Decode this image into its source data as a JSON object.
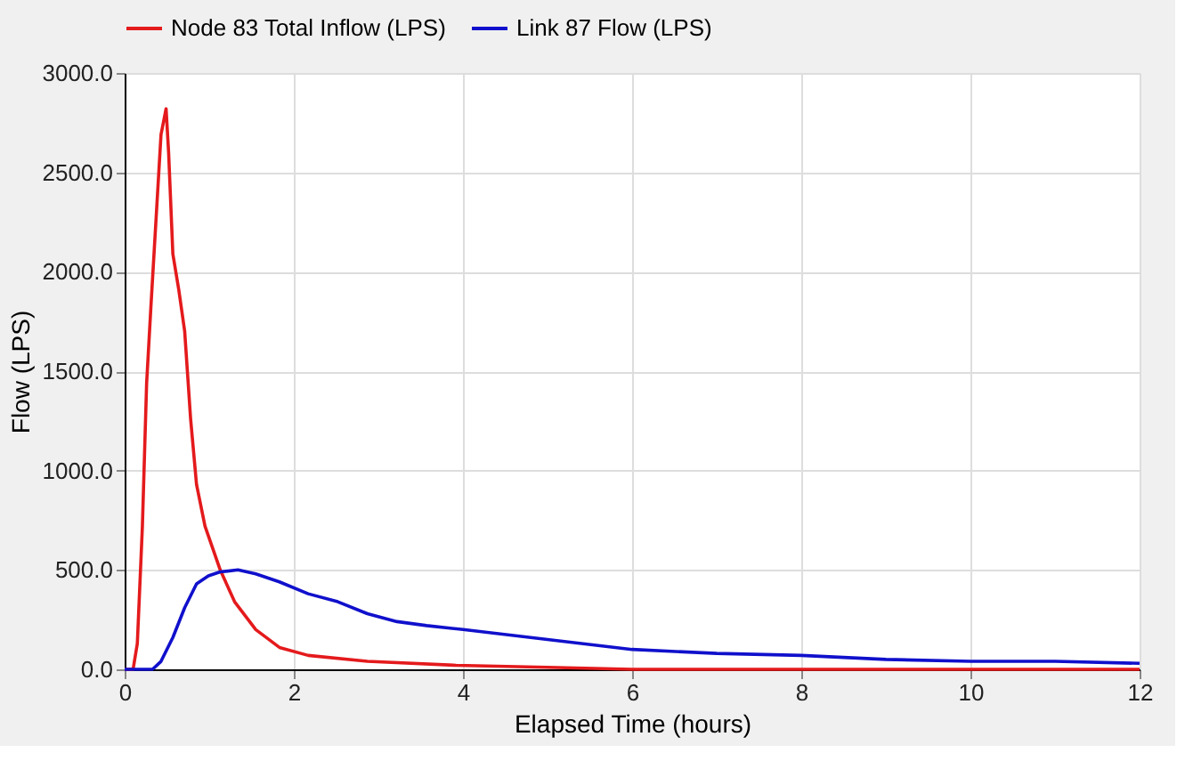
{
  "chart_data": {
    "type": "line",
    "xlabel": "Elapsed Time (hours)",
    "ylabel": "Flow (LPS)",
    "xlim": [
      0,
      12
    ],
    "xticks": [
      0,
      2,
      4,
      6,
      8,
      10,
      12
    ],
    "ylim": [
      0,
      3000
    ],
    "yticks": [
      {
        "value": 0,
        "label": "0.0"
      },
      {
        "value": 500,
        "label": "500.0"
      },
      {
        "value": 1000,
        "label": "1000.0"
      },
      {
        "value": 1500,
        "label": "1500.0"
      },
      {
        "value": 2000,
        "label": "2000.0"
      },
      {
        "value": 2500,
        "label": "2500.0"
      },
      {
        "value": 3000,
        "label": "3000.0"
      }
    ],
    "grid": true,
    "legend": "top",
    "marker": "none",
    "line_style": "solid",
    "series": [
      {
        "name": "Node 83 Total Inflow (LPS)",
        "color": "#e41a1c",
        "x": [
          0,
          0.1,
          0.15,
          0.21,
          0.26,
          0.31,
          0.43,
          0.49,
          0.52,
          0.57,
          0.64,
          0.71,
          0.78,
          0.85,
          0.95,
          1.13,
          1.3,
          1.55,
          1.83,
          2.17,
          2.87,
          3.92,
          5,
          6,
          8,
          12
        ],
        "values": [
          0,
          0,
          130,
          720,
          1440,
          1820,
          2690,
          2820,
          2600,
          2090,
          1910,
          1700,
          1260,
          930,
          720,
          500,
          340,
          200,
          110,
          70,
          40,
          20,
          10,
          0,
          0,
          0
        ]
      },
      {
        "name": "Link 87 Flow (LPS)",
        "color": "#1010cc",
        "x": [
          0,
          0.33,
          0.43,
          0.57,
          0.71,
          0.85,
          0.99,
          1.13,
          1.34,
          1.55,
          1.83,
          2.17,
          2.52,
          2.87,
          3.22,
          3.57,
          4,
          5,
          6,
          7,
          8,
          9,
          10,
          11,
          12
        ],
        "values": [
          0,
          0,
          40,
          160,
          310,
          430,
          470,
          490,
          500,
          480,
          440,
          380,
          340,
          280,
          240,
          220,
          200,
          150,
          100,
          80,
          70,
          50,
          40,
          40,
          30
        ]
      }
    ]
  }
}
